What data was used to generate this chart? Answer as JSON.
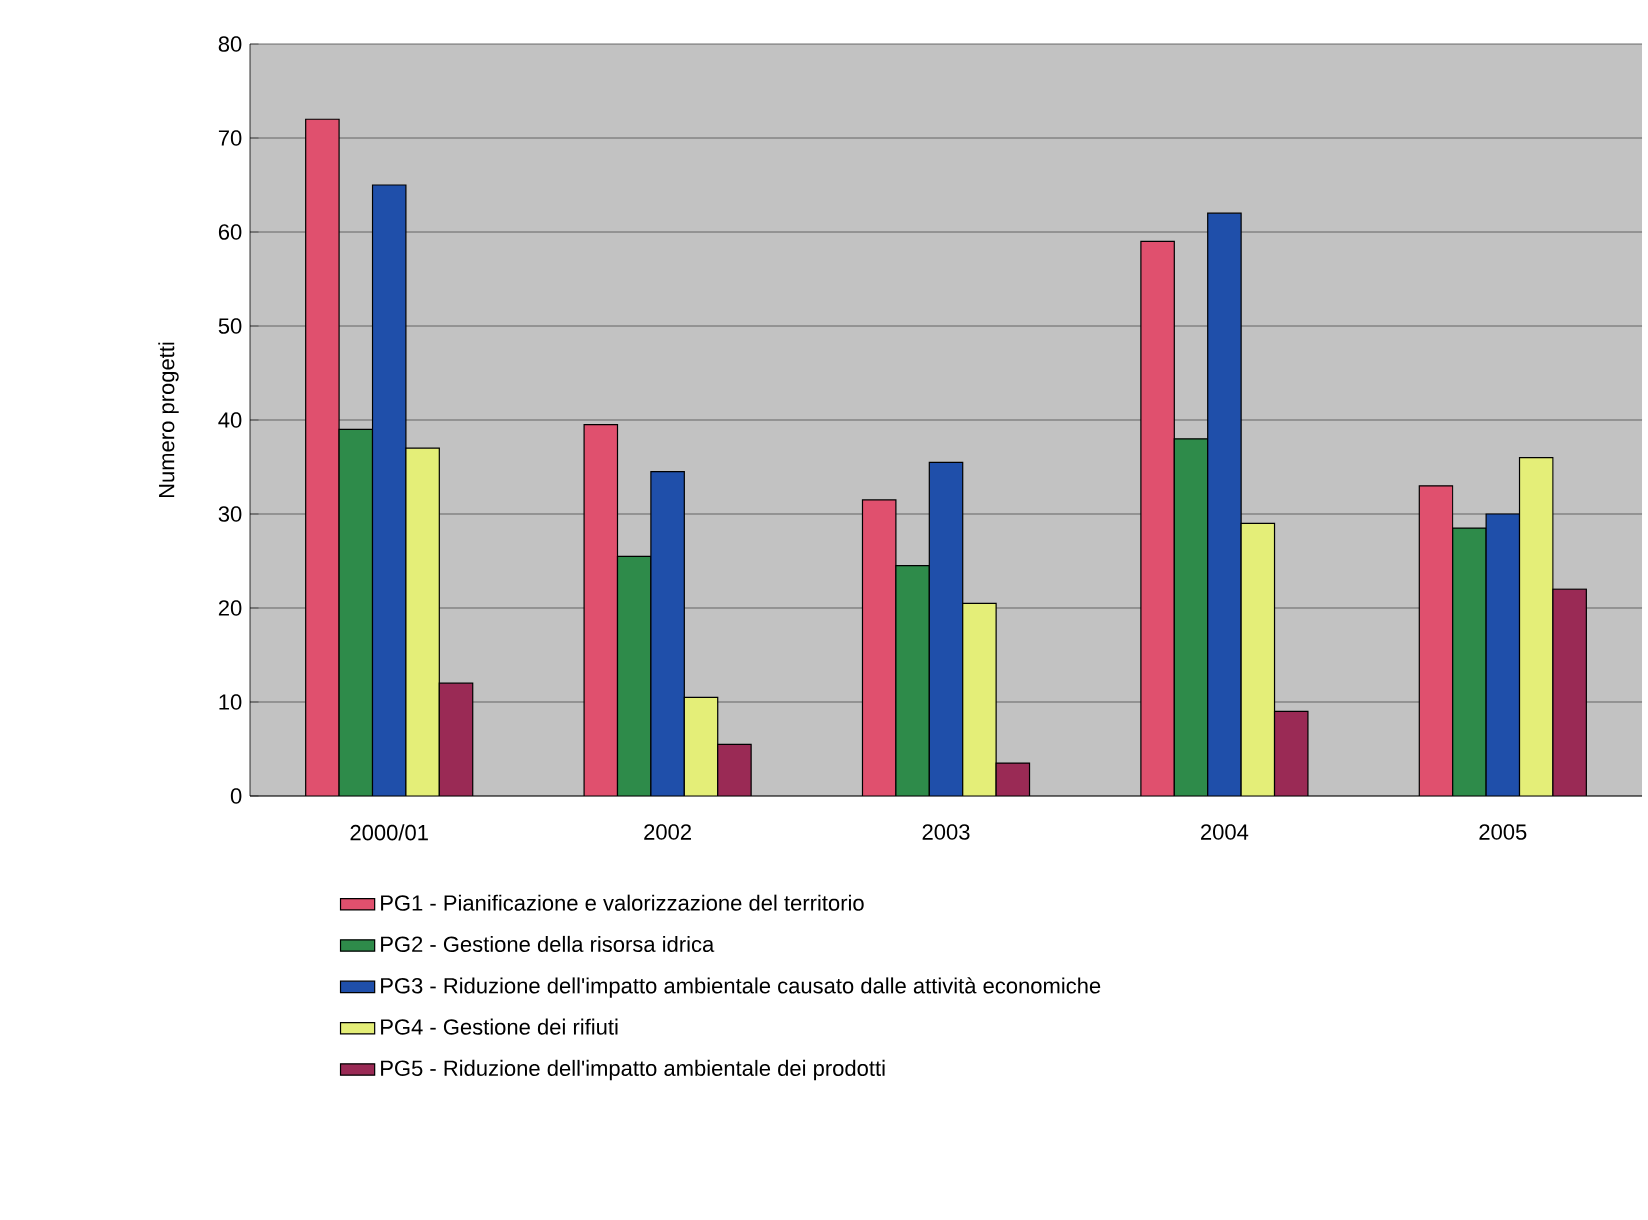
{
  "chart_data": {
    "type": "bar",
    "ylabel": "Numero progetti",
    "categories": [
      "2000/01",
      "2002",
      "2003",
      "2004",
      "2005"
    ],
    "series": [
      {
        "name": "PG1 - Pianificazione e valorizzazione del territorio",
        "color": "#e0506e",
        "values": [
          72,
          39.5,
          31.5,
          59,
          33
        ]
      },
      {
        "name": "PG2 - Gestione della risorsa idrica",
        "color": "#2e8b4a",
        "values": [
          39,
          25.5,
          24.5,
          38,
          28.5
        ]
      },
      {
        "name": "PG3 - Riduzione dell'impatto ambientale causato dalle attività economiche",
        "color": "#1f4faa",
        "values": [
          65,
          34.5,
          35.5,
          62,
          30
        ]
      },
      {
        "name": "PG4 - Gestione dei rifiuti",
        "color": "#e4ee78",
        "values": [
          37,
          10.5,
          20.5,
          29,
          36
        ]
      },
      {
        "name": "PG5 - Riduzione dell'impatto ambientale dei prodotti",
        "color": "#9a2a55",
        "values": [
          12,
          5.5,
          3.5,
          9,
          22
        ]
      }
    ],
    "ylim": [
      0,
      80
    ],
    "yticks": [
      0,
      10,
      20,
      30,
      40,
      50,
      60,
      70,
      80
    ],
    "grid": "y",
    "legend": "bottom"
  }
}
